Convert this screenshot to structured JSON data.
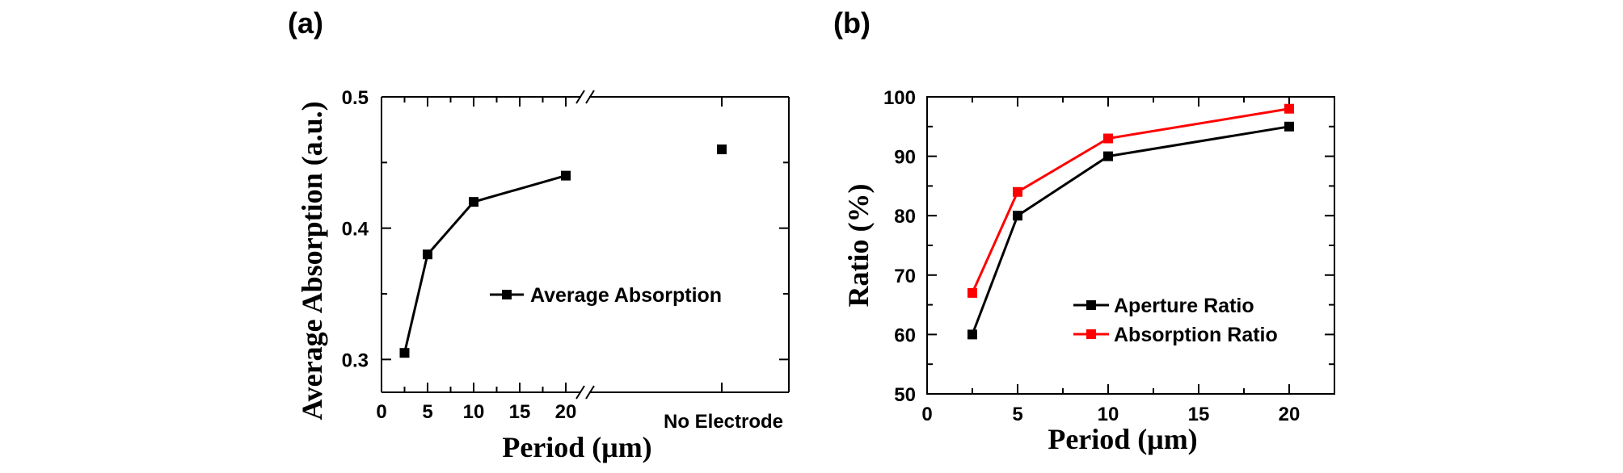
{
  "panels": {
    "a_label": "(a)",
    "b_label": "(b)"
  },
  "chart_data": [
    {
      "type": "line",
      "panel": "(a)",
      "xlabel": "Period (μm)",
      "ylabel": "Average Absorption (a.u.)",
      "x_ticks": [
        "0",
        "5",
        "10",
        "15",
        "20"
      ],
      "x_extra_category": "No Electrode",
      "y_ticks": [
        "0.3",
        "0.4",
        "0.5"
      ],
      "xlim": [
        0,
        22
      ],
      "ylim": [
        0.275,
        0.5
      ],
      "axis_break": "between 20 and No Electrode",
      "legend_position": "center-right",
      "series": [
        {
          "name": "Average Absorption",
          "color": "#000000",
          "marker": "square",
          "x": [
            2.5,
            5,
            10,
            20
          ],
          "y": [
            0.305,
            0.38,
            0.42,
            0.44
          ]
        }
      ],
      "extra_point": {
        "category": "No Electrode",
        "y": 0.46,
        "color": "#000000",
        "marker": "square"
      }
    },
    {
      "type": "line",
      "panel": "(b)",
      "xlabel": "Period (μm)",
      "ylabel": "Ratio (%)",
      "x_ticks": [
        "0",
        "5",
        "10",
        "15",
        "20"
      ],
      "y_ticks": [
        "50",
        "60",
        "70",
        "80",
        "90",
        "100"
      ],
      "xlim": [
        0,
        22.5
      ],
      "ylim": [
        50,
        100
      ],
      "legend_position": "bottom-right",
      "series": [
        {
          "name": "Aperture Ratio",
          "color": "#000000",
          "marker": "square",
          "x": [
            2.5,
            5,
            10,
            20
          ],
          "y": [
            60,
            80,
            90,
            95
          ]
        },
        {
          "name": "Absorption Ratio",
          "color": "#ff0000",
          "marker": "square",
          "x": [
            2.5,
            5,
            10,
            20
          ],
          "y": [
            67,
            84,
            93,
            98
          ]
        }
      ]
    }
  ]
}
